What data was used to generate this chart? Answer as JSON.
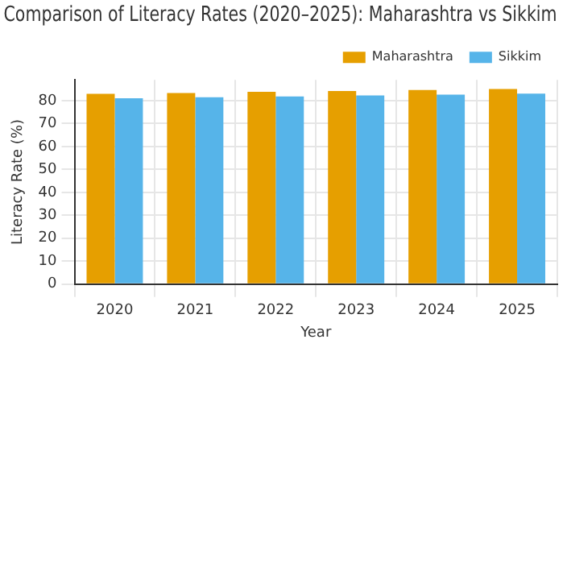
{
  "chart_data": {
    "type": "bar",
    "title": "Comparison of Literacy Rates (2020–2025): Maharashtra vs Sikkim",
    "xlabel": "Year",
    "ylabel": "Literacy Rate (%)",
    "categories": [
      "2020",
      "2021",
      "2022",
      "2023",
      "2024",
      "2025"
    ],
    "series": [
      {
        "name": "Maharashtra",
        "color": "#e69f00",
        "values": [
          82.9,
          83.3,
          83.8,
          84.2,
          84.6,
          85.0
        ]
      },
      {
        "name": "Sikkim",
        "color": "#56b4e9",
        "values": [
          81.0,
          81.4,
          81.8,
          82.2,
          82.6,
          83.0
        ]
      }
    ],
    "ylim": [
      0,
      89
    ],
    "yticks": [
      0,
      10,
      20,
      30,
      40,
      50,
      60,
      70,
      80
    ],
    "grid": true,
    "legend": "top right"
  }
}
